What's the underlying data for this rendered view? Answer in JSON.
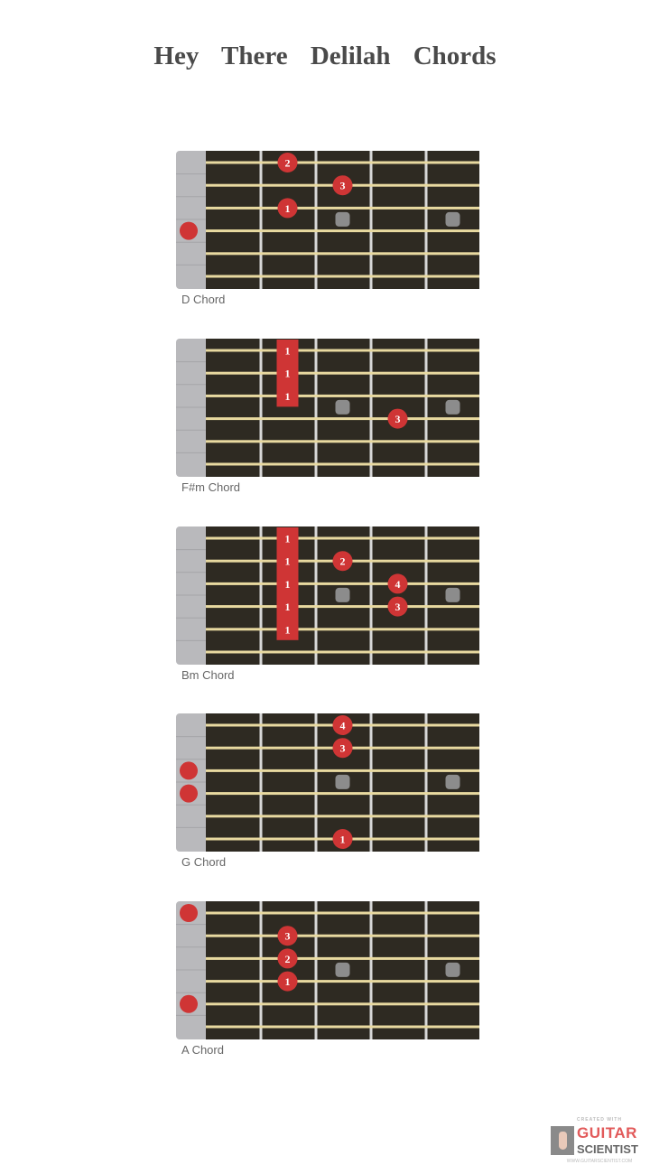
{
  "title": "Hey There Delilah Chords",
  "colors": {
    "fretboard": "#2e2a22",
    "string": "#e8d9a0",
    "fret": "#d8d8d8",
    "nut": "#b9b9bc",
    "finger": "#cf3535",
    "inlay": "#8c8c8c",
    "label": "#666666"
  },
  "chords": [
    {
      "label": "D Chord",
      "open": [
        4
      ],
      "barre": null,
      "fingers": [
        {
          "string": 1,
          "fret": 2,
          "finger": "2"
        },
        {
          "string": 2,
          "fret": 3,
          "finger": "3"
        },
        {
          "string": 3,
          "fret": 2,
          "finger": "1"
        }
      ]
    },
    {
      "label": "F#m Chord",
      "open": [],
      "barre": {
        "fret": 2,
        "from": 1,
        "to": 3,
        "finger": "1"
      },
      "fingers": [
        {
          "string": 4,
          "fret": 4,
          "finger": "3"
        }
      ]
    },
    {
      "label": "Bm Chord",
      "open": [],
      "barre": {
        "fret": 2,
        "from": 1,
        "to": 5,
        "finger": "1"
      },
      "fingers": [
        {
          "string": 2,
          "fret": 3,
          "finger": "2"
        },
        {
          "string": 3,
          "fret": 4,
          "finger": "4"
        },
        {
          "string": 4,
          "fret": 4,
          "finger": "3"
        }
      ]
    },
    {
      "label": "G Chord",
      "open": [
        3,
        4
      ],
      "barre": null,
      "fingers": [
        {
          "string": 1,
          "fret": 3,
          "finger": "4"
        },
        {
          "string": 2,
          "fret": 3,
          "finger": "3"
        },
        {
          "string": 6,
          "fret": 3,
          "finger": "1"
        }
      ]
    },
    {
      "label": "A Chord",
      "open": [
        1,
        5
      ],
      "barre": null,
      "fingers": [
        {
          "string": 2,
          "fret": 2,
          "finger": "3"
        },
        {
          "string": 3,
          "fret": 2,
          "finger": "2"
        },
        {
          "string": 4,
          "fret": 2,
          "finger": "1"
        }
      ]
    }
  ],
  "inlay_frets": [
    3,
    5
  ],
  "logo": {
    "top": "CREATED WITH",
    "line1": "GUITAR",
    "line2": "SCIENTIST",
    "url": "WWW.GUITARSCIENTIST.COM"
  }
}
